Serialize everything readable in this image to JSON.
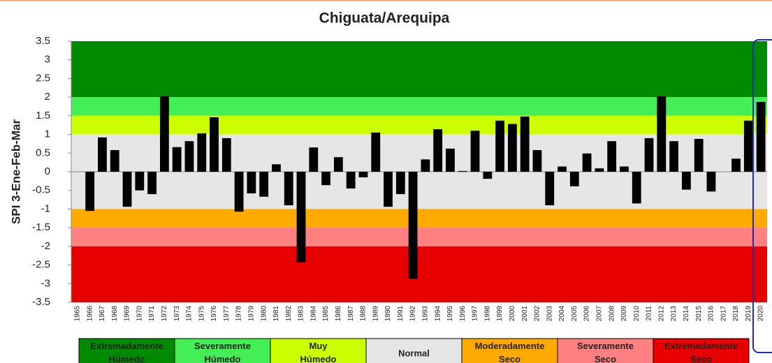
{
  "chart_data": {
    "type": "bar",
    "title": "Chiguata/Arequipa",
    "y_label": "SPI 3-Ene-Feb-Mar",
    "categories": [
      "1965",
      "1966",
      "1967",
      "1968",
      "1969",
      "1970",
      "1971",
      "1972",
      "1973",
      "1974",
      "1975",
      "1976",
      "1977",
      "1978",
      "1979",
      "1980",
      "1981",
      "1982",
      "1983",
      "1984",
      "1985",
      "1986",
      "1987",
      "1988",
      "1989",
      "1990",
      "1991",
      "1992",
      "1993",
      "1994",
      "1995",
      "1996",
      "1997",
      "1998",
      "1999",
      "2000",
      "2001",
      "2002",
      "2003",
      "2004",
      "2005",
      "2006",
      "2007",
      "2008",
      "2009",
      "2010",
      "2011",
      "2012",
      "2013",
      "2014",
      "2015",
      "2016",
      "2017",
      "2018",
      "2019",
      "2020"
    ],
    "values": [
      0,
      -1.05,
      0.92,
      0.58,
      -0.94,
      -0.5,
      -0.6,
      2.02,
      0.66,
      0.82,
      1.03,
      1.46,
      0.9,
      -1.07,
      -0.58,
      -0.67,
      0.2,
      -0.9,
      -2.43,
      0.65,
      -0.36,
      0.39,
      -0.45,
      -0.15,
      1.05,
      -0.94,
      -0.6,
      -2.87,
      0.33,
      1.14,
      0.62,
      0.02,
      1.1,
      -0.19,
      1.37,
      1.28,
      1.48,
      0.58,
      -0.9,
      0.14,
      -0.39,
      0.49,
      0.09,
      0.82,
      0.14,
      -0.85,
      0.9,
      2.02,
      0.82,
      -0.48,
      0.88,
      -0.53,
      0,
      0.35,
      1.37,
      1.87
    ],
    "color": "#000000",
    "ylim": [
      -3.5,
      3.5
    ],
    "yticks": [
      3.5,
      3,
      2.5,
      2,
      1.5,
      1,
      0.5,
      0,
      -0.5,
      -1,
      -1.5,
      -2,
      -2.5,
      -3,
      -3.5
    ],
    "bands": [
      {
        "label": "Extremadamente Húmedo",
        "from": 2,
        "to": 3.5,
        "color": "#008a00"
      },
      {
        "label": "Severamente Húmedo",
        "from": 1.5,
        "to": 2,
        "color": "#44ee55"
      },
      {
        "label": "Muy Húmedo",
        "from": 1,
        "to": 1.5,
        "color": "#ccff00"
      },
      {
        "label": "Normal",
        "from": -1,
        "to": 1,
        "color": "#e6e6e6"
      },
      {
        "label": "Moderadamente Seco",
        "from": -1.5,
        "to": -1,
        "color": "#ffaa00"
      },
      {
        "label": "Severamente Seco",
        "from": -2,
        "to": -1.5,
        "color": "#ff8080"
      },
      {
        "label": "Extremadamente Seco",
        "from": -3.5,
        "to": -2,
        "color": "#e60000"
      }
    ]
  }
}
